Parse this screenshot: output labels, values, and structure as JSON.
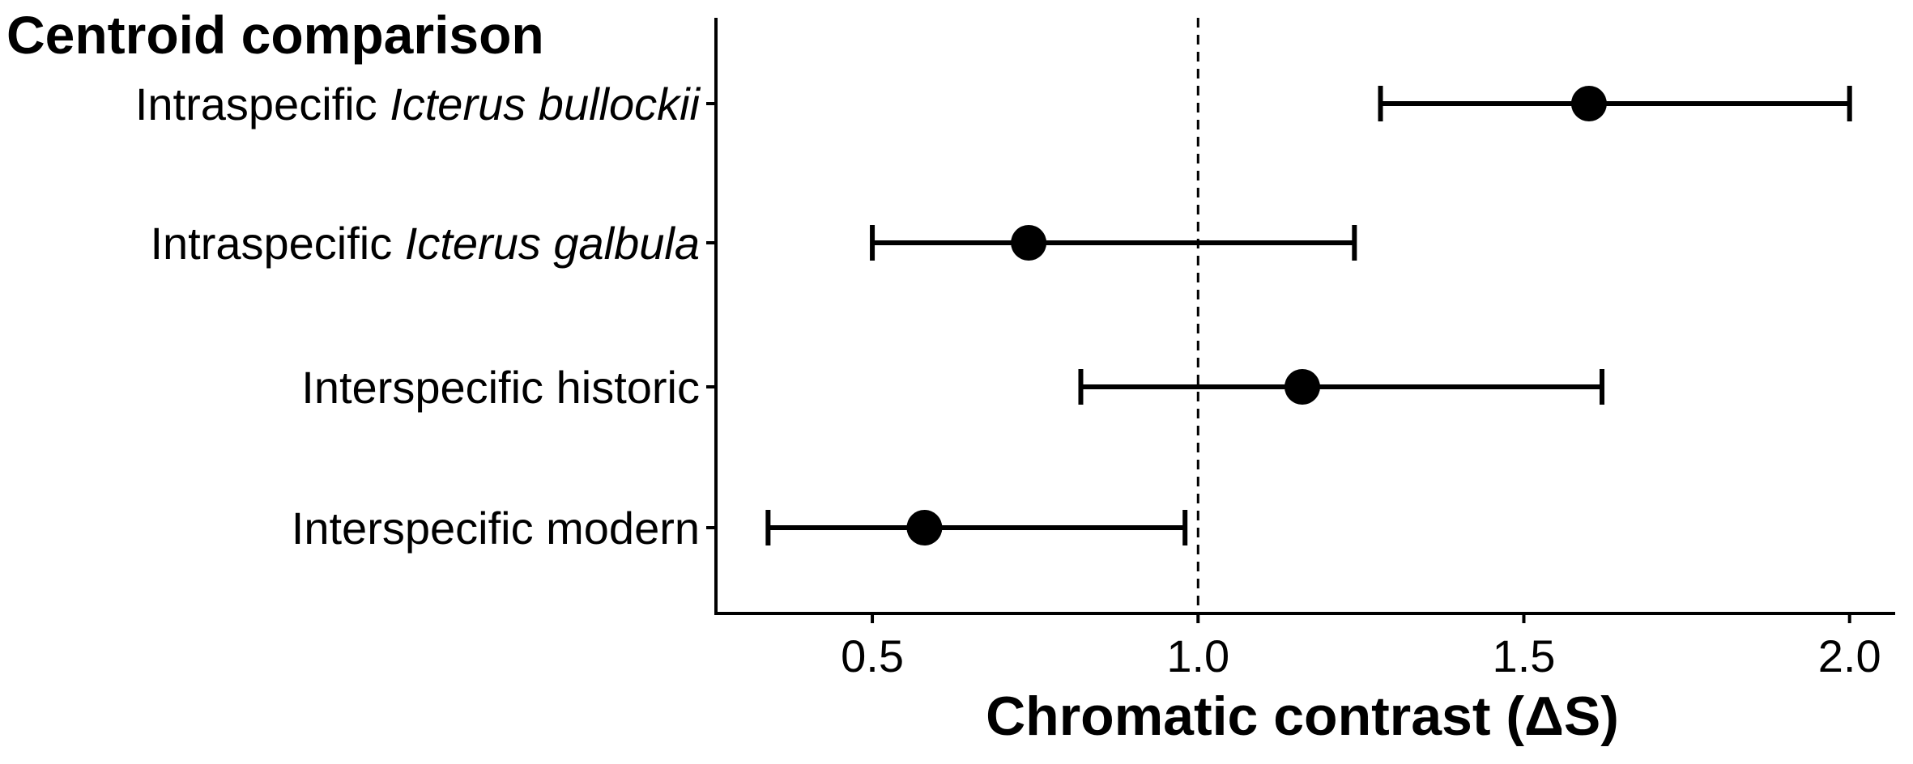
{
  "chart_data": {
    "type": "scatter",
    "title": "Centroid comparison",
    "xlabel": "Chromatic contrast (ΔS)",
    "ylabel": "",
    "xlim": [
      0.26,
      2.07
    ],
    "x_ticks": [
      0.5,
      1.0,
      1.5,
      2.0
    ],
    "x_tick_labels": [
      "0.5",
      "1.0",
      "1.5",
      "2.0"
    ],
    "reference_line": {
      "x": 1.0,
      "style": "dashed"
    },
    "categories": [
      {
        "plain": "Intraspecific ",
        "italic": "Icterus bullockii"
      },
      {
        "plain": "Intraspecific ",
        "italic": "Icterus galbula"
      },
      {
        "plain": "Interspecific historic",
        "italic": ""
      },
      {
        "plain": "Interspecific modern",
        "italic": ""
      }
    ],
    "series": [
      {
        "points": [
          {
            "value": 1.6,
            "low": 1.28,
            "high": 2.0
          },
          {
            "value": 0.74,
            "low": 0.5,
            "high": 1.24
          },
          {
            "value": 1.16,
            "low": 0.82,
            "high": 1.62
          },
          {
            "value": 0.58,
            "low": 0.34,
            "high": 0.98
          }
        ]
      }
    ],
    "grid": false,
    "colors": {
      "marks": "#000000",
      "background": "#ffffff"
    }
  }
}
